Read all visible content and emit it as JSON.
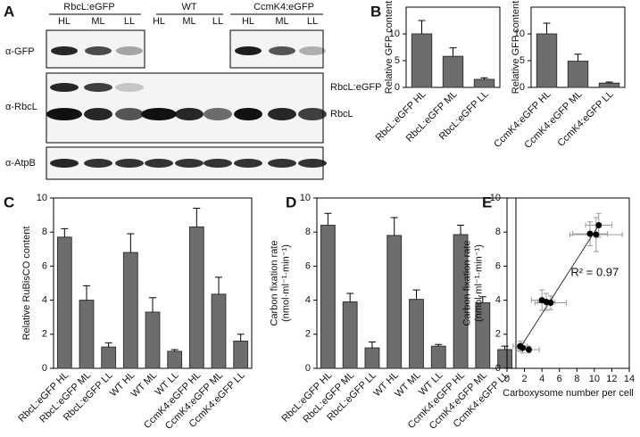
{
  "panel_a": {
    "panel": "A",
    "groups": [
      "RbcL:eGFP",
      "WT",
      "CcmK4:eGFP"
    ],
    "lanes": [
      "HL",
      "ML",
      "LL",
      "HL",
      "ML",
      "LL",
      "HL",
      "ML",
      "LL"
    ],
    "rows": [
      "α-GFP",
      "α-RbcL",
      "α-AtpB"
    ],
    "band_labels": [
      "RbcL:eGFP",
      "RbcL"
    ]
  },
  "chart_data": [
    {
      "panel": "B",
      "type": "bar",
      "ylabel": [
        "Relative GFP content"
      ],
      "categories": [
        "RbcL:eGFP HL",
        "RbcL:eGFP ML",
        "RbcL:eGFP LL"
      ],
      "values": [
        10,
        5.8,
        1.5
      ],
      "errors": [
        2.5,
        1.6,
        0.3
      ],
      "color": "#6d6d6d",
      "ylim": [
        0,
        15
      ],
      "yticks": [
        0,
        5,
        10
      ]
    },
    {
      "type": "bar",
      "ylabel": [
        "Relative GFP content"
      ],
      "categories": [
        "CcmK4:eGFP HL",
        "CcmK4:eGFP ML",
        "CcmK4:eGFP LL"
      ],
      "values": [
        10,
        4.9,
        0.8
      ],
      "errors": [
        2,
        1.3,
        0.2
      ],
      "color": "#6d6d6d",
      "ylim": [
        0,
        15
      ],
      "yticks": [
        0,
        5,
        10
      ]
    },
    {
      "panel": "C",
      "type": "bar",
      "ylabel": [
        "Relative RuBisCO content"
      ],
      "categories": [
        "RbcL:eGFP HL",
        "RbcL:eGFP ML",
        "RbcL:eGFP LL",
        "WT HL",
        "WT ML",
        "WT LL",
        "CcmK4:eGFP HL",
        "CcmK4:eGFP ML",
        "CcmK4:eGFP LL"
      ],
      "values": [
        7.7,
        4.0,
        1.25,
        6.8,
        3.3,
        1.0,
        8.3,
        4.35,
        1.6
      ],
      "errors": [
        0.5,
        0.85,
        0.25,
        1.1,
        0.85,
        0.1,
        1.1,
        1.0,
        0.4
      ],
      "color": "#6d6d6d",
      "ylim": [
        0,
        10
      ],
      "yticks": [
        0,
        2,
        4,
        6,
        8,
        10
      ]
    },
    {
      "panel": "D",
      "type": "bar",
      "ylabel": [
        "Carbon fixation rate",
        "(nmol·ml⁻¹·min⁻¹)"
      ],
      "categories": [
        "RbcL:eGFP HL",
        "RbcL:eGFP ML",
        "RbcL:eGFP LL",
        "WT HL",
        "WT ML",
        "WT LL",
        "CcmK4:eGFP HL",
        "CcmK4:eGFP ML",
        "CcmK4:eGFP LL"
      ],
      "values": [
        8.4,
        3.9,
        1.2,
        7.8,
        4.05,
        1.3,
        7.85,
        3.85,
        1.1
      ],
      "errors": [
        0.7,
        0.5,
        0.35,
        1.05,
        0.55,
        0.1,
        0.55,
        0.35,
        0.2
      ],
      "color": "#6d6d6d",
      "ylim": [
        0,
        10
      ],
      "yticks": [
        0,
        2,
        4,
        6,
        8,
        10
      ]
    },
    {
      "panel": "E",
      "type": "scatter",
      "ylabel": [
        "Carbon fixation rate",
        "(nmol·ml⁻¹·min⁻¹)"
      ],
      "xlabel": "Carboxysome number per cell",
      "x": [
        1.5,
        1.8,
        2.5,
        4.0,
        4.5,
        5.0,
        9.5,
        10.2,
        10.5
      ],
      "values": [
        1.3,
        1.2,
        1.1,
        4.0,
        3.9,
        3.85,
        7.9,
        7.85,
        8.4
      ],
      "xerr": [
        0.8,
        0.7,
        1.2,
        1.2,
        1.0,
        1.8,
        2.0,
        3.0,
        1.5
      ],
      "yerr": [
        0.3,
        0.3,
        0.2,
        0.6,
        0.5,
        0.4,
        0.7,
        1.0,
        0.7
      ],
      "color": "#000000",
      "trendline": {
        "x": [
          1.5,
          10.5
        ],
        "y": [
          1.2,
          8.4
        ]
      },
      "annotation": "R² = 0.97",
      "xlim": [
        0,
        14
      ],
      "xticks": [
        0,
        2,
        4,
        6,
        8,
        10,
        12,
        14
      ],
      "ylim": [
        0,
        10
      ],
      "yticks": [
        0,
        2,
        4,
        6,
        8,
        10
      ]
    }
  ]
}
